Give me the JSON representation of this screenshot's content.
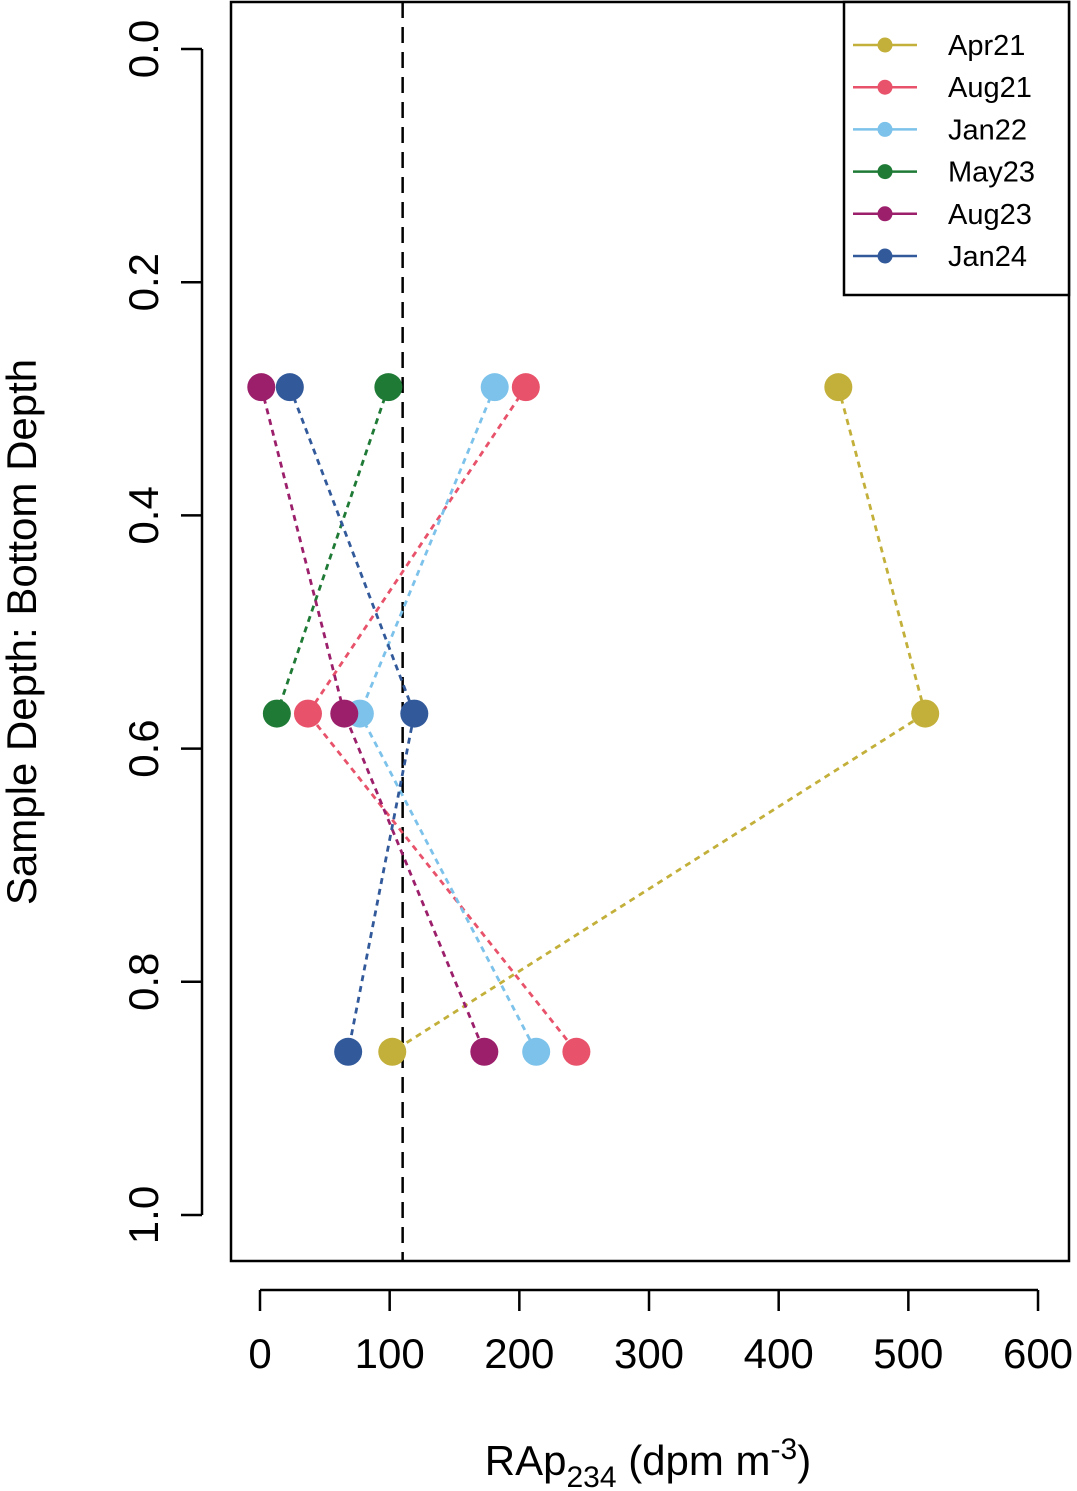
{
  "chart_data": {
    "type": "scatter",
    "xlabel": {
      "main": "RAp",
      "subscript": "234",
      "unit_open": " (dpm m",
      "unit_sup": "-3",
      "unit_close": ")"
    },
    "ylabel": "Sample Depth: Bottom Depth",
    "xlim": [
      0,
      600
    ],
    "ylim": [
      0,
      1.0
    ],
    "y_reversed": true,
    "x_ticks": [
      "0",
      "100",
      "200",
      "300",
      "400",
      "500",
      "600"
    ],
    "y_ticks": [
      "0.0",
      "0.2",
      "0.4",
      "0.6",
      "0.8",
      "1.0"
    ],
    "reference_line_x": 110,
    "legend_position": "top-right",
    "grid": false,
    "series": [
      {
        "name": "Apr21",
        "color": "#c3b03a",
        "points": [
          {
            "x": 446,
            "y": 0.29
          },
          {
            "x": 513,
            "y": 0.57
          },
          {
            "x": 102,
            "y": 0.86
          }
        ]
      },
      {
        "name": "Aug21",
        "color": "#e8526a",
        "points": [
          {
            "x": 205,
            "y": 0.29
          },
          {
            "x": 37,
            "y": 0.57
          },
          {
            "x": 244,
            "y": 0.86
          }
        ]
      },
      {
        "name": "Jan22",
        "color": "#7cc2ea",
        "points": [
          {
            "x": 181,
            "y": 0.29
          },
          {
            "x": 77,
            "y": 0.57
          },
          {
            "x": 213,
            "y": 0.86
          }
        ]
      },
      {
        "name": "May23",
        "color": "#1f7a36",
        "points": [
          {
            "x": 99,
            "y": 0.29
          },
          {
            "x": 13,
            "y": 0.57
          }
        ]
      },
      {
        "name": "Aug23",
        "color": "#9c1f6b",
        "points": [
          {
            "x": 1,
            "y": 0.29
          },
          {
            "x": 65,
            "y": 0.57
          },
          {
            "x": 173,
            "y": 0.86
          }
        ]
      },
      {
        "name": "Jan24",
        "color": "#325a9b",
        "points": [
          {
            "x": 23,
            "y": 0.29
          },
          {
            "x": 119,
            "y": 0.57
          },
          {
            "x": 68,
            "y": 0.86
          }
        ]
      }
    ]
  }
}
